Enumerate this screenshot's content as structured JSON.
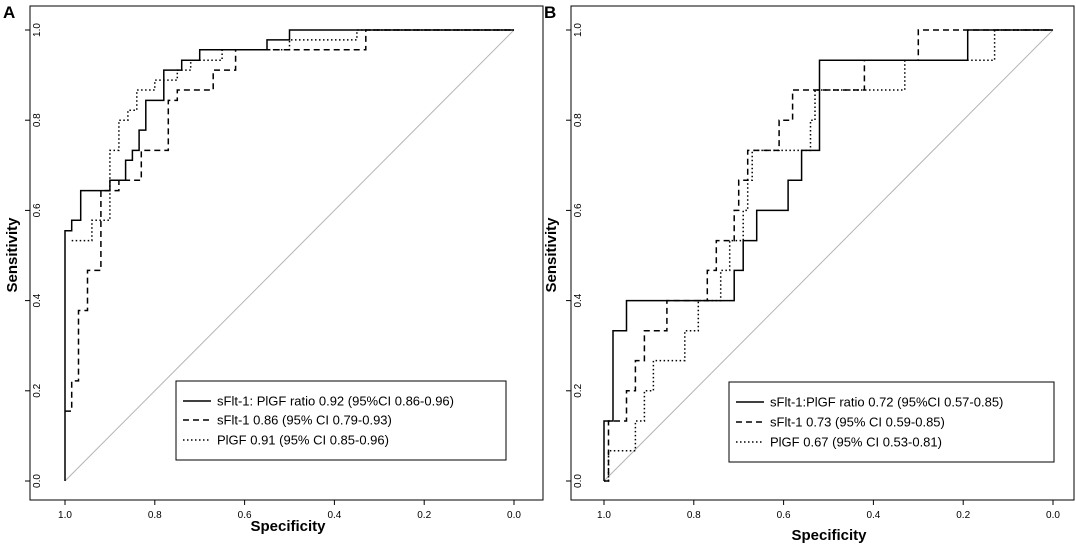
{
  "chart_data": [
    {
      "type": "line",
      "panel": "A",
      "xlabel": "Specificity",
      "ylabel": "Sensitivity",
      "xlim": [
        1.0,
        0.0
      ],
      "ylim": [
        0.0,
        1.0
      ],
      "x_ticks": [
        "1.0",
        "0.8",
        "0.6",
        "0.4",
        "0.2",
        "0.0"
      ],
      "y_ticks": [
        "0.0",
        "0.2",
        "0.4",
        "0.6",
        "0.8",
        "1.0"
      ],
      "reference_line": {
        "from": [
          1.0,
          0.0
        ],
        "to": [
          0.0,
          1.0
        ]
      },
      "legend_position": "bottom-right",
      "series": [
        {
          "name": "sFlt-1: PlGF ratio 0.92 (95%CI 0.86-0.96)",
          "style": "solid",
          "points": [
            [
              1.0,
              0.0
            ],
            [
              1.0,
              0.555
            ],
            [
              0.985,
              0.555
            ],
            [
              0.985,
              0.578
            ],
            [
              0.965,
              0.578
            ],
            [
              0.965,
              0.644
            ],
            [
              0.9,
              0.644
            ],
            [
              0.9,
              0.667
            ],
            [
              0.865,
              0.667
            ],
            [
              0.865,
              0.711
            ],
            [
              0.85,
              0.711
            ],
            [
              0.85,
              0.733
            ],
            [
              0.835,
              0.733
            ],
            [
              0.835,
              0.778
            ],
            [
              0.82,
              0.778
            ],
            [
              0.82,
              0.844
            ],
            [
              0.78,
              0.844
            ],
            [
              0.78,
              0.911
            ],
            [
              0.74,
              0.911
            ],
            [
              0.74,
              0.933
            ],
            [
              0.7,
              0.933
            ],
            [
              0.7,
              0.956
            ],
            [
              0.55,
              0.956
            ],
            [
              0.55,
              0.978
            ],
            [
              0.5,
              0.978
            ],
            [
              0.5,
              1.0
            ],
            [
              0.0,
              1.0
            ]
          ]
        },
        {
          "name": "sFlt-1 0.86 (95% CI 0.79-0.93)",
          "style": "dashed",
          "points": [
            [
              1.0,
              0.155
            ],
            [
              0.985,
              0.155
            ],
            [
              0.985,
              0.222
            ],
            [
              0.97,
              0.222
            ],
            [
              0.97,
              0.378
            ],
            [
              0.95,
              0.378
            ],
            [
              0.95,
              0.467
            ],
            [
              0.92,
              0.467
            ],
            [
              0.92,
              0.644
            ],
            [
              0.88,
              0.644
            ],
            [
              0.88,
              0.667
            ],
            [
              0.83,
              0.667
            ],
            [
              0.83,
              0.733
            ],
            [
              0.77,
              0.733
            ],
            [
              0.77,
              0.844
            ],
            [
              0.75,
              0.844
            ],
            [
              0.75,
              0.867
            ],
            [
              0.67,
              0.867
            ],
            [
              0.67,
              0.911
            ],
            [
              0.62,
              0.911
            ],
            [
              0.62,
              0.956
            ],
            [
              0.33,
              0.956
            ],
            [
              0.33,
              1.0
            ],
            [
              0.0,
              1.0
            ]
          ]
        },
        {
          "name": "PlGF 0.91 (95% CI 0.85-0.96)",
          "style": "dotted",
          "points": [
            [
              0.985,
              0.533
            ],
            [
              0.94,
              0.533
            ],
            [
              0.94,
              0.578
            ],
            [
              0.9,
              0.578
            ],
            [
              0.9,
              0.733
            ],
            [
              0.88,
              0.733
            ],
            [
              0.88,
              0.8
            ],
            [
              0.86,
              0.8
            ],
            [
              0.86,
              0.822
            ],
            [
              0.84,
              0.822
            ],
            [
              0.84,
              0.867
            ],
            [
              0.8,
              0.867
            ],
            [
              0.8,
              0.889
            ],
            [
              0.75,
              0.889
            ],
            [
              0.75,
              0.911
            ],
            [
              0.72,
              0.911
            ],
            [
              0.72,
              0.933
            ],
            [
              0.65,
              0.933
            ],
            [
              0.65,
              0.956
            ],
            [
              0.5,
              0.956
            ],
            [
              0.5,
              0.978
            ],
            [
              0.35,
              0.978
            ],
            [
              0.35,
              1.0
            ],
            [
              0.0,
              1.0
            ]
          ]
        }
      ]
    },
    {
      "type": "line",
      "panel": "B",
      "xlabel": "Specificity",
      "ylabel": "Sensitivity",
      "xlim": [
        1.0,
        0.0
      ],
      "ylim": [
        0.0,
        1.0
      ],
      "x_ticks": [
        "1.0",
        "0.8",
        "0.6",
        "0.4",
        "0.2",
        "0.0"
      ],
      "y_ticks": [
        "0.0",
        "0.2",
        "0.4",
        "0.6",
        "0.8",
        "1.0"
      ],
      "reference_line": {
        "from": [
          1.0,
          0.0
        ],
        "to": [
          0.0,
          1.0
        ]
      },
      "legend_position": "bottom-right",
      "series": [
        {
          "name": "sFlt-1:PlGF ratio 0.72 (95%CI 0.57-0.85)",
          "style": "solid",
          "points": [
            [
              1.0,
              0.0
            ],
            [
              1.0,
              0.133
            ],
            [
              0.98,
              0.133
            ],
            [
              0.98,
              0.333
            ],
            [
              0.95,
              0.333
            ],
            [
              0.95,
              0.4
            ],
            [
              0.71,
              0.4
            ],
            [
              0.71,
              0.467
            ],
            [
              0.69,
              0.467
            ],
            [
              0.69,
              0.533
            ],
            [
              0.66,
              0.533
            ],
            [
              0.66,
              0.6
            ],
            [
              0.59,
              0.6
            ],
            [
              0.59,
              0.667
            ],
            [
              0.56,
              0.667
            ],
            [
              0.56,
              0.733
            ],
            [
              0.52,
              0.733
            ],
            [
              0.52,
              0.933
            ],
            [
              0.19,
              0.933
            ],
            [
              0.19,
              1.0
            ],
            [
              0.0,
              1.0
            ]
          ]
        },
        {
          "name": "sFlt-1 0.73 (95% CI 0.59-0.85)",
          "style": "dashed",
          "points": [
            [
              1.0,
              0.0
            ],
            [
              0.99,
              0.0
            ],
            [
              0.99,
              0.133
            ],
            [
              0.95,
              0.133
            ],
            [
              0.95,
              0.2
            ],
            [
              0.93,
              0.2
            ],
            [
              0.93,
              0.267
            ],
            [
              0.91,
              0.267
            ],
            [
              0.91,
              0.333
            ],
            [
              0.86,
              0.333
            ],
            [
              0.86,
              0.4
            ],
            [
              0.77,
              0.4
            ],
            [
              0.77,
              0.467
            ],
            [
              0.75,
              0.467
            ],
            [
              0.75,
              0.533
            ],
            [
              0.71,
              0.533
            ],
            [
              0.71,
              0.6
            ],
            [
              0.7,
              0.6
            ],
            [
              0.7,
              0.667
            ],
            [
              0.68,
              0.667
            ],
            [
              0.68,
              0.733
            ],
            [
              0.61,
              0.733
            ],
            [
              0.61,
              0.8
            ],
            [
              0.58,
              0.8
            ],
            [
              0.58,
              0.867
            ],
            [
              0.42,
              0.867
            ],
            [
              0.42,
              0.933
            ],
            [
              0.3,
              0.933
            ],
            [
              0.3,
              1.0
            ],
            [
              0.0,
              1.0
            ]
          ]
        },
        {
          "name": "PlGF 0.67 (95% CI 0.53-0.81)",
          "style": "dotted",
          "points": [
            [
              1.0,
              0.0
            ],
            [
              0.99,
              0.0
            ],
            [
              0.99,
              0.067
            ],
            [
              0.93,
              0.067
            ],
            [
              0.93,
              0.133
            ],
            [
              0.91,
              0.133
            ],
            [
              0.91,
              0.2
            ],
            [
              0.89,
              0.2
            ],
            [
              0.89,
              0.267
            ],
            [
              0.82,
              0.267
            ],
            [
              0.82,
              0.333
            ],
            [
              0.79,
              0.333
            ],
            [
              0.79,
              0.4
            ],
            [
              0.74,
              0.4
            ],
            [
              0.74,
              0.467
            ],
            [
              0.72,
              0.467
            ],
            [
              0.72,
              0.533
            ],
            [
              0.69,
              0.533
            ],
            [
              0.69,
              0.6
            ],
            [
              0.68,
              0.6
            ],
            [
              0.68,
              0.667
            ],
            [
              0.67,
              0.667
            ],
            [
              0.67,
              0.733
            ],
            [
              0.54,
              0.733
            ],
            [
              0.54,
              0.8
            ],
            [
              0.53,
              0.8
            ],
            [
              0.53,
              0.867
            ],
            [
              0.33,
              0.867
            ],
            [
              0.33,
              0.933
            ],
            [
              0.13,
              0.933
            ],
            [
              0.13,
              1.0
            ],
            [
              0.0,
              1.0
            ]
          ]
        }
      ]
    }
  ]
}
